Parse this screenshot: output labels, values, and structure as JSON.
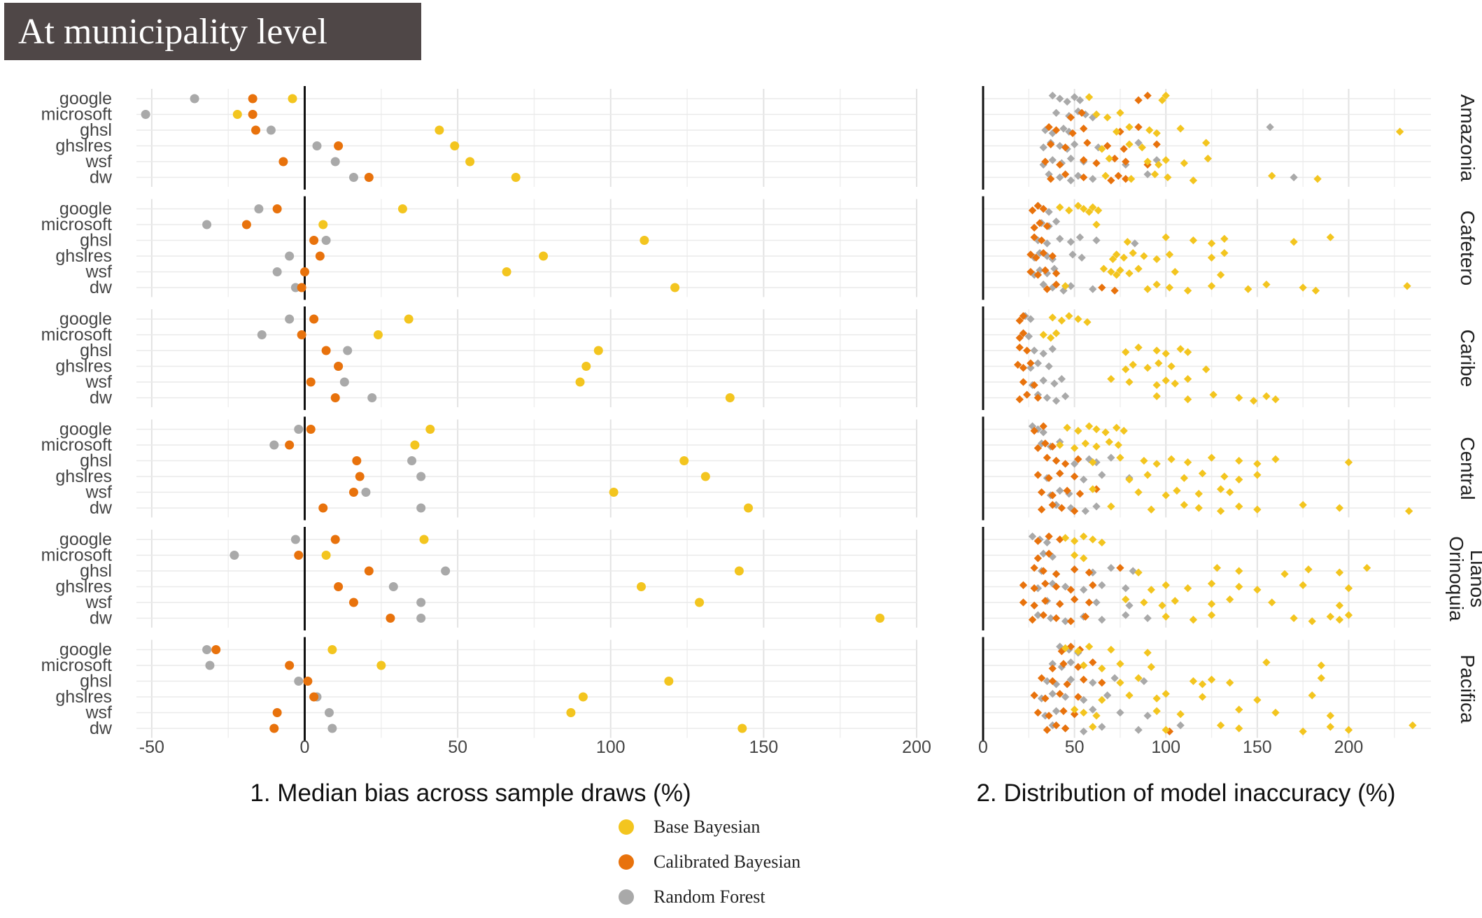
{
  "title": "At municipality level",
  "colors": {
    "base_bayesian": "#f3c51f",
    "calibrated_bayesian": "#e8720c",
    "random_forest": "#a9a9a9"
  },
  "legend": [
    {
      "key": "base_bayesian",
      "label": "Base Bayesian"
    },
    {
      "key": "calibrated_bayesian",
      "label": "Calibrated Bayesian"
    },
    {
      "key": "random_forest",
      "label": "Random Forest"
    }
  ],
  "chart_data": [
    {
      "type": "scatter",
      "title": "",
      "xlabel": "1. Median bias across sample draws (%)",
      "ylabel": "",
      "xlim": [
        -55,
        200
      ],
      "xticks": [
        -50,
        0,
        50,
        100,
        150,
        200
      ],
      "grid": true,
      "categories": [
        "google",
        "microsoft",
        "ghsl",
        "ghslres",
        "wsf",
        "dw"
      ],
      "facets": [
        {
          "region": "Amazonia",
          "base_bayesian": [
            -4,
            -22,
            44,
            49,
            54,
            69
          ],
          "calibrated_bayesian": [
            -17,
            -17,
            -16,
            11,
            -7,
            21
          ],
          "random_forest": [
            -36,
            -52,
            -11,
            4,
            10,
            16
          ]
        },
        {
          "region": "Cafetero",
          "base_bayesian": [
            32,
            6,
            111,
            78,
            66,
            121
          ],
          "calibrated_bayesian": [
            -9,
            -19,
            3,
            5,
            0,
            -1
          ],
          "random_forest": [
            -15,
            -32,
            7,
            -5,
            -9,
            -3
          ]
        },
        {
          "region": "Caribe",
          "base_bayesian": [
            34,
            24,
            96,
            92,
            90,
            139
          ],
          "calibrated_bayesian": [
            3,
            -1,
            7,
            11,
            2,
            10
          ],
          "random_forest": [
            -5,
            -14,
            14,
            11,
            13,
            22
          ]
        },
        {
          "region": "Central",
          "base_bayesian": [
            41,
            36,
            124,
            131,
            101,
            145
          ],
          "calibrated_bayesian": [
            2,
            -5,
            17,
            18,
            16,
            6
          ],
          "random_forest": [
            -2,
            -10,
            35,
            38,
            20,
            38
          ]
        },
        {
          "region": "Llanos Orinoquia",
          "base_bayesian": [
            39,
            7,
            142,
            110,
            129,
            188
          ],
          "calibrated_bayesian": [
            10,
            -2,
            21,
            11,
            16,
            28
          ],
          "random_forest": [
            -3,
            -23,
            46,
            29,
            38,
            38
          ]
        },
        {
          "region": "Pacifica",
          "base_bayesian": [
            9,
            25,
            119,
            91,
            87,
            143
          ],
          "calibrated_bayesian": [
            -29,
            -5,
            1,
            3,
            -9,
            -10
          ],
          "random_forest": [
            -32,
            -31,
            -2,
            4,
            8,
            9
          ]
        }
      ]
    },
    {
      "type": "scatter",
      "title": "",
      "xlabel": "2. Distribution of model inaccuracy (%)",
      "ylabel": "",
      "xlim": [
        0,
        245
      ],
      "xticks": [
        0,
        50,
        100,
        150,
        200
      ],
      "grid": true,
      "categories": [
        "google",
        "microsoft",
        "ghsl",
        "ghslres",
        "wsf",
        "dw"
      ],
      "facets": [
        {
          "region": "Amazonia",
          "base_bayesian": [
            [
              58,
              98,
              100
            ],
            [
              62,
              68,
              75
            ],
            [
              73,
              80,
              91,
              95,
              108,
              228
            ],
            [
              65,
              80,
              87,
              122
            ],
            [
              69,
              90,
              96,
              100,
              110,
              123
            ],
            [
              67,
              81,
              94,
              101,
              115,
              158,
              183
            ]
          ],
          "calibrated_bayesian": [
            [
              85,
              90
            ],
            [
              48,
              54
            ],
            [
              36,
              40,
              49,
              55,
              75,
              85
            ],
            [
              37,
              45,
              57,
              68,
              77,
              95
            ],
            [
              34,
              42,
              55,
              62,
              72,
              78,
              90
            ],
            [
              37,
              45,
              55,
              70,
              74,
              78
            ]
          ],
          "random_forest": [
            [
              38,
              42,
              46,
              50,
              53
            ],
            [
              40,
              47,
              52,
              56,
              60
            ],
            [
              34,
              38,
              44,
              47,
              157
            ],
            [
              33,
              37,
              42,
              46,
              50,
              63,
              85
            ],
            [
              33,
              38,
              43,
              48,
              55,
              78,
              95
            ],
            [
              36,
              42,
              48,
              52,
              60,
              90,
              170
            ]
          ]
        },
        {
          "region": "Cafetero",
          "base_bayesian": [
            [
              42,
              47,
              52,
              55,
              58,
              60,
              63
            ],
            [
              62
            ],
            [
              79,
              100,
              115,
              125,
              132,
              170,
              190
            ],
            [
              71,
              73,
              77,
              82,
              88,
              95,
              102,
              125,
              132
            ],
            [
              66,
              70,
              73,
              75,
              80,
              85,
              105,
              130
            ],
            [
              45,
              90,
              95,
              102,
              112,
              125,
              145,
              155,
              175,
              182,
              232
            ]
          ],
          "calibrated_bayesian": [
            [
              27,
              30,
              33
            ],
            [
              28,
              31,
              35
            ],
            [
              28,
              32
            ],
            [
              26,
              29,
              33,
              38
            ],
            [
              26,
              30,
              34,
              40
            ],
            [
              35,
              40,
              65,
              72
            ]
          ],
          "random_forest": [
            [
              30,
              33,
              36
            ],
            [
              32,
              36,
              40
            ],
            [
              30,
              35,
              42,
              48,
              53,
              62,
              83
            ],
            [
              28,
              31,
              35,
              38,
              49,
              54
            ],
            [
              28,
              31,
              35,
              39
            ],
            [
              33,
              38,
              44,
              48,
              60
            ]
          ]
        },
        {
          "region": "Caribe",
          "base_bayesian": [
            [
              38,
              43,
              47,
              52,
              57
            ],
            [
              33,
              37,
              40
            ],
            [
              78,
              85,
              95,
              100,
              108,
              112
            ],
            [
              78,
              82,
              90,
              96,
              103,
              122
            ],
            [
              70,
              80,
              95,
              100,
              105,
              112
            ],
            [
              95,
              112,
              126,
              140,
              148,
              155,
              160
            ]
          ],
          "calibrated_bayesian": [
            [
              20,
              22
            ],
            [
              20,
              22
            ],
            [
              20,
              24
            ],
            [
              19,
              22,
              26
            ],
            [
              22,
              28
            ],
            [
              20,
              24,
              30
            ]
          ],
          "random_forest": [
            [
              23,
              26
            ],
            [
              22,
              25
            ],
            [
              28,
              33,
              38
            ],
            [
              26,
              30,
              36
            ],
            [
              27,
              33,
              39,
              43
            ],
            [
              30,
              35,
              40,
              45
            ]
          ]
        },
        {
          "region": "Central",
          "base_bayesian": [
            [
              46,
              52,
              58,
              62,
              67,
              73,
              77
            ],
            [
              42,
              50,
              56,
              62,
              69,
              74
            ],
            [
              60,
              75,
              88,
              95,
              103,
              112,
              125,
              140,
              150,
              160,
              200
            ],
            [
              80,
              90,
              110,
              120,
              132,
              140,
              150
            ],
            [
              60,
              85,
              100,
              106,
              118,
              130,
              135
            ],
            [
              70,
              92,
              110,
              118,
              130,
              140,
              150,
              175,
              195,
              233
            ]
          ],
          "calibrated_bayesian": [
            [
              28,
              33
            ],
            [
              30,
              34,
              38
            ],
            [
              35,
              40,
              45,
              52
            ],
            [
              30,
              36,
              42,
              50
            ],
            [
              32,
              38,
              46,
              53,
              62
            ],
            [
              32,
              38,
              43,
              50
            ]
          ],
          "random_forest": [
            [
              27,
              30,
              33
            ],
            [
              32,
              37,
              42
            ],
            [
              40,
              50,
              58,
              62,
              70
            ],
            [
              35,
              42,
              50,
              55,
              65,
              80
            ],
            [
              37,
              42,
              47
            ],
            [
              40,
              48,
              56,
              62
            ]
          ]
        },
        {
          "region": "Llanos Orinoquia",
          "base_bayesian": [
            [
              45,
              50,
              55,
              60,
              65
            ],
            [
              50,
              55
            ],
            [
              85,
              128,
              140,
              165,
              178,
              195,
              210
            ],
            [
              92,
              100,
              112,
              125,
              140,
              150,
              175,
              200
            ],
            [
              78,
              88,
              98,
              105,
              125,
              135,
              158,
              195
            ],
            [
              100,
              115,
              125,
              170,
              180,
              190,
              195,
              200
            ]
          ],
          "calibrated_bayesian": [
            [
              30,
              36,
              42
            ],
            [
              30,
              36
            ],
            [
              28,
              33,
              40,
              50,
              58,
              75
            ],
            [
              22,
              28,
              34,
              40,
              48,
              60
            ],
            [
              22,
              28,
              34,
              42,
              50,
              58
            ],
            [
              27,
              33,
              40,
              48,
              56
            ]
          ],
          "random_forest": [
            [
              27,
              31,
              35
            ],
            [
              33,
              38
            ],
            [
              32,
              40,
              50,
              60,
              70,
              82
            ],
            [
              30,
              38,
              45,
              55,
              65,
              78
            ],
            [
              28,
              35,
              42,
              50,
              62,
              80
            ],
            [
              30,
              37,
              45,
              55,
              65,
              78,
              90
            ]
          ]
        },
        {
          "region": "Pacifica",
          "base_bayesian": [
            [
              45,
              52,
              58,
              70,
              90
            ],
            [
              55,
              65,
              75,
              92,
              155,
              185
            ],
            [
              75,
              85,
              115,
              120,
              125,
              135,
              185
            ],
            [
              65,
              80,
              95,
              100,
              120,
              150,
              180
            ],
            [
              50,
              55,
              62,
              95,
              108,
              140,
              160,
              190
            ],
            [
              60,
              100,
              130,
              140,
              175,
              190,
              200,
              235
            ]
          ],
          "calibrated_bayesian": [
            [
              43,
              48,
              53
            ],
            [
              38,
              44,
              52,
              60
            ],
            [
              32,
              38,
              46,
              55,
              65
            ],
            [
              28,
              34,
              42,
              52
            ],
            [
              30,
              36,
              44,
              50
            ],
            [
              35,
              40,
              45,
              102
            ]
          ],
          "random_forest": [
            [
              42,
              47,
              52
            ],
            [
              38,
              43,
              48,
              55
            ],
            [
              35,
              40,
              48,
              60,
              72,
              88
            ],
            [
              32,
              38,
              45,
              55,
              68
            ],
            [
              34,
              40,
              50,
              60,
              75,
              90
            ],
            [
              38,
              45,
              55,
              65,
              85,
              108
            ]
          ]
        }
      ]
    }
  ]
}
